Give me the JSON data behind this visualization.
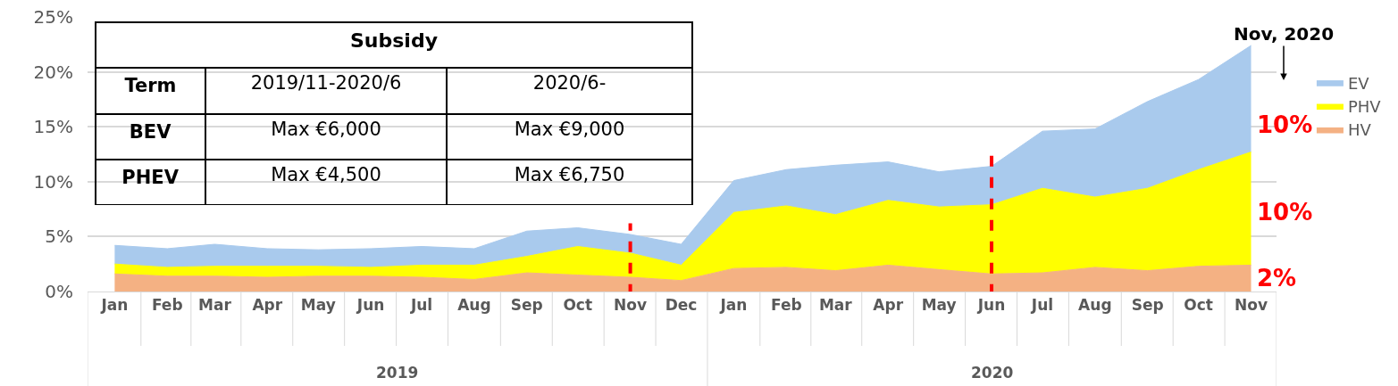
{
  "chart_data": {
    "type": "area",
    "stacked": true,
    "x": [
      "2019-01",
      "2019-02",
      "2019-03",
      "2019-04",
      "2019-05",
      "2019-06",
      "2019-07",
      "2019-08",
      "2019-09",
      "2019-10",
      "2019-11",
      "2019-12",
      "2020-01",
      "2020-02",
      "2020-03",
      "2020-04",
      "2020-05",
      "2020-06",
      "2020-07",
      "2020-08",
      "2020-09",
      "2020-10",
      "2020-11"
    ],
    "series": [
      {
        "name": "HV",
        "color": "#f4b183",
        "values": [
          1.6,
          1.4,
          1.4,
          1.3,
          1.4,
          1.4,
          1.3,
          1.1,
          1.7,
          1.5,
          1.3,
          1.0,
          2.1,
          2.2,
          1.9,
          2.4,
          2.0,
          1.6,
          1.7,
          2.2,
          1.9,
          2.3,
          2.4
        ]
      },
      {
        "name": "PHV",
        "color": "#ffff00",
        "values": [
          0.9,
          0.8,
          0.9,
          1.0,
          0.9,
          0.8,
          1.1,
          1.3,
          1.5,
          2.6,
          2.2,
          1.4,
          5.1,
          5.6,
          5.1,
          5.9,
          5.7,
          6.3,
          7.7,
          6.4,
          7.5,
          8.8,
          10.3
        ]
      },
      {
        "name": "EV",
        "color": "#a9caed",
        "values": [
          1.7,
          1.7,
          2.0,
          1.6,
          1.5,
          1.7,
          1.7,
          1.5,
          2.3,
          1.7,
          1.7,
          1.9,
          2.9,
          3.3,
          4.5,
          3.5,
          3.2,
          3.5,
          5.2,
          6.2,
          7.9,
          8.2,
          9.7
        ]
      }
    ],
    "xlim": [
      "2018-12-16",
      "2020-11-16"
    ],
    "xticks": [
      {
        "value": "2019-01",
        "label": "Jan"
      },
      {
        "value": "2019-02",
        "label": "Feb"
      },
      {
        "value": "2019-03",
        "label": "Mar"
      },
      {
        "value": "2019-04",
        "label": "Apr"
      },
      {
        "value": "2019-05",
        "label": "May"
      },
      {
        "value": "2019-06",
        "label": "Jun"
      },
      {
        "value": "2019-07",
        "label": "Jul"
      },
      {
        "value": "2019-08",
        "label": "Aug"
      },
      {
        "value": "2019-09",
        "label": "Sep"
      },
      {
        "value": "2019-10",
        "label": "Oct"
      },
      {
        "value": "2019-11",
        "label": "Nov"
      },
      {
        "value": "2019-12",
        "label": "Dec"
      },
      {
        "value": "2020-01",
        "label": "Jan"
      },
      {
        "value": "2020-02",
        "label": "Feb"
      },
      {
        "value": "2020-03",
        "label": "Mar"
      },
      {
        "value": "2020-04",
        "label": "Apr"
      },
      {
        "value": "2020-05",
        "label": "May"
      },
      {
        "value": "2020-06",
        "label": "Jun"
      },
      {
        "value": "2020-07",
        "label": "Jul"
      },
      {
        "value": "2020-08",
        "label": "Aug"
      },
      {
        "value": "2020-09",
        "label": "Sep"
      },
      {
        "value": "2020-10",
        "label": "Oct"
      },
      {
        "value": "2020-11",
        "label": "Nov"
      }
    ],
    "ylim": [
      0,
      25
    ],
    "yticks": [
      {
        "value": 0,
        "label": "0%"
      },
      {
        "value": 5,
        "label": "5%"
      },
      {
        "value": 10,
        "label": "10%"
      },
      {
        "value": 15,
        "label": "15%"
      },
      {
        "value": 20,
        "label": "20%"
      },
      {
        "value": 25,
        "label": "25%"
      }
    ],
    "grid": "y",
    "legend": "right",
    "ref_lines": [
      {
        "axis": "x",
        "value": "2019-11",
        "color": "#ff0000",
        "line_style": "dashed"
      },
      {
        "axis": "x",
        "value": "2020-06",
        "color": "#ff0000",
        "line_style": "dashed"
      }
    ],
    "annotations": [
      "Subsidy",
      "Term",
      "2019/11-2020/6",
      "2020/6-",
      "BEV",
      "Max €6,000",
      "Max €9,000",
      "PHEV",
      "Max €4,500",
      "Max €6,750",
      "Nov, 2020",
      "10%",
      "10%",
      "2%",
      "2019",
      "2020"
    ]
  }
}
